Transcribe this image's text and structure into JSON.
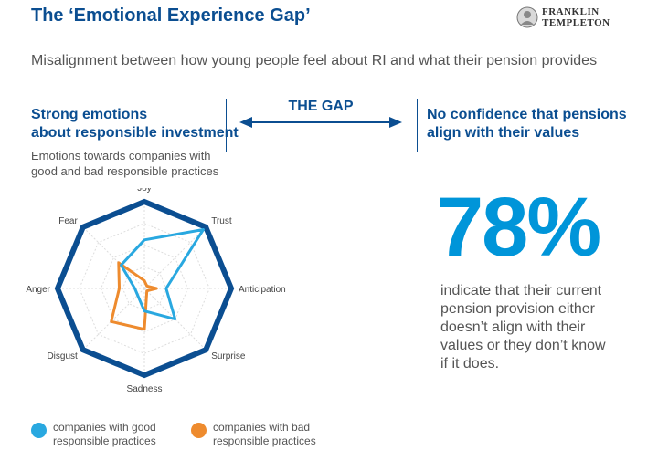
{
  "title": "The ‘Emotional Experience Gap’",
  "logo": {
    "line1": "FRANKLIN",
    "line2": "TEMPLETON"
  },
  "subtitle": "Misalignment between how young people feel about RI and what their pension provides",
  "left": {
    "heading_line1": "Strong emotions",
    "heading_line2": "about responsible investment",
    "caption_line1": "Emotions towards companies with",
    "caption_line2": "good and bad responsible practices"
  },
  "gap_label": "THE GAP",
  "right": {
    "heading_line1": "No confidence that pensions",
    "heading_line2": "align with their values",
    "stat": "78%",
    "desc_line1": "indicate that their current",
    "desc_line2": "pension provision either",
    "desc_line3": "doesn’t align with their",
    "desc_line4": "values or they don’t know",
    "desc_line5": "if it does."
  },
  "colors": {
    "brand": "#0b4e91",
    "good": "#29a8e0",
    "bad": "#ee8b2e",
    "stat": "#0095d9"
  },
  "chart_data": {
    "type": "radar",
    "categories": [
      "Joy",
      "Trust",
      "Anticipation",
      "Surprise",
      "Sadness",
      "Disgust",
      "Anger",
      "Fear"
    ],
    "rmax": 1.0,
    "grid_rings": [
      0.25,
      0.5,
      0.75,
      1.0
    ],
    "series": [
      {
        "name": "companies with good responsible practices",
        "name_line1": "companies with good",
        "name_line2": "responsible practices",
        "color": "#29a8e0",
        "values": [
          0.56,
          0.96,
          0.25,
          0.5,
          0.26,
          0.11,
          0.11,
          0.38
        ]
      },
      {
        "name": "companies with bad responsible practices",
        "name_line1": "companies with bad",
        "name_line2": "responsible practices",
        "color": "#ee8b2e",
        "values": [
          0.09,
          0.04,
          0.14,
          0.04,
          0.47,
          0.54,
          0.29,
          0.42
        ]
      }
    ]
  }
}
